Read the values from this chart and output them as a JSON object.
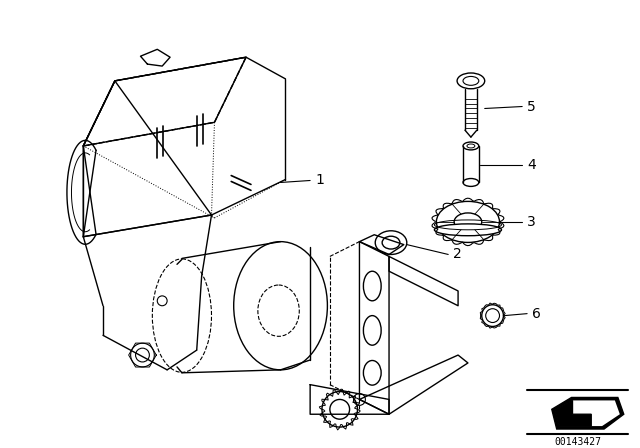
{
  "background_color": "#ffffff",
  "line_color": "#000000",
  "diagram_id": "00143427",
  "figsize": [
    6.4,
    4.48
  ],
  "dpi": 100
}
